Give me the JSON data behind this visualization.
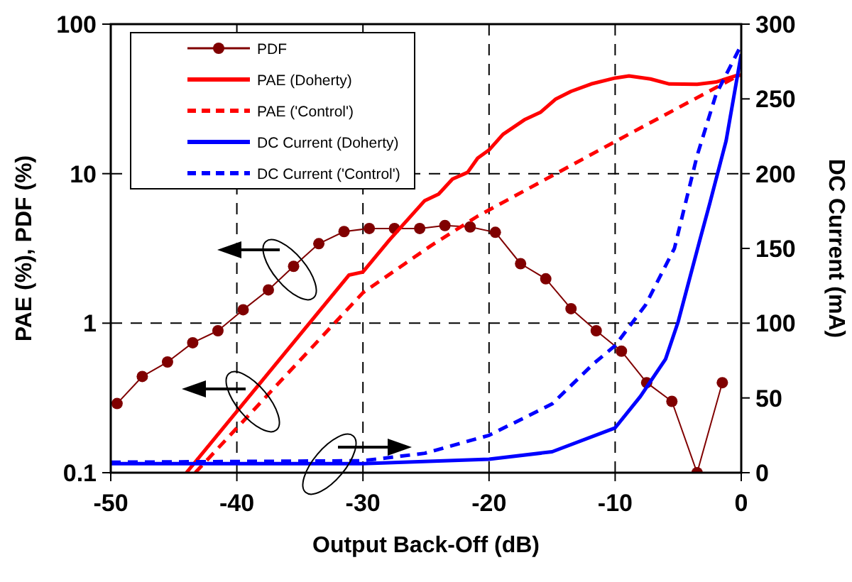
{
  "chart_data": {
    "type": "line",
    "xlabel": "Output Back-Off (dB)",
    "ylabel": "PAE (%), PDF (%)",
    "y2label": "DC Current (mA)",
    "xlim": [
      -50,
      0
    ],
    "xticks": [
      -50,
      -40,
      -30,
      -20,
      -10,
      0
    ],
    "ylim": [
      0.1,
      100
    ],
    "yticks": [
      0.1,
      1,
      10,
      100
    ],
    "log": "y",
    "y2lim": [
      0,
      300
    ],
    "y2ticks": [
      0,
      50,
      100,
      150,
      200,
      250,
      300
    ],
    "grid": true,
    "legend": "top left",
    "series": [
      {
        "name": "PDF",
        "color": "#800000",
        "marker": "circle",
        "line_style": "solid",
        "x": [
          -49.5,
          -47.5,
          -45.5,
          -43.5,
          -41.5,
          -39.5,
          -37.5,
          -35.5,
          -33.5,
          -31.5,
          -29.5,
          -27.5,
          -25.5,
          -23.5,
          -21.5,
          -19.5,
          -17.5,
          -15.5,
          -13.5,
          -11.5,
          -9.5,
          -7.5,
          -5.5,
          -3.5,
          -1.5
        ],
        "values": [
          0.29,
          0.44,
          0.55,
          0.74,
          0.89,
          1.23,
          1.67,
          2.4,
          3.4,
          4.1,
          4.3,
          4.3,
          4.3,
          4.5,
          4.4,
          4.05,
          2.5,
          1.98,
          1.25,
          0.89,
          0.65,
          0.4,
          0.3,
          0.1,
          0.4
        ]
      },
      {
        "name": "PAE (Doherty)",
        "color": "#ff0000",
        "marker": "none",
        "line_style": "solid",
        "x": [
          -44,
          -31.1,
          -30,
          -27.9,
          -25.1,
          -24,
          -22.9,
          -21.7,
          -20.9,
          -20,
          -18.9,
          -17.2,
          -15.9,
          -14.7,
          -13.5,
          -11.9,
          -10,
          -8.9,
          -7.2,
          -5.7,
          -3.5,
          -2,
          -0.5,
          0
        ],
        "values": [
          0.1,
          2.1,
          2.2,
          3.6,
          6.6,
          7.3,
          9.2,
          10.2,
          12.7,
          14.4,
          18.3,
          22.9,
          25.8,
          31.6,
          35.5,
          39.8,
          43.6,
          45,
          43,
          39.8,
          39.6,
          41,
          45,
          45.7
        ]
      },
      {
        "name": "PAE ('Control')",
        "color": "#ff0000",
        "marker": "none",
        "line_style": "dashed",
        "x": [
          -43.3,
          -30,
          -24.6,
          -20.9,
          -10,
          -0.5
        ],
        "values": [
          0.1,
          1.6,
          3.3,
          5.2,
          16.4,
          44
        ]
      },
      {
        "name": "DC Current (Doherty)",
        "color": "#0000ff",
        "marker": "none",
        "line_style": "solid",
        "axis": "y2",
        "x": [
          -50,
          -30,
          -20,
          -15,
          -10,
          -8,
          -6,
          -5,
          -3.3,
          -2.5,
          -1.2,
          0
        ],
        "values": [
          6,
          6,
          9,
          14,
          30,
          51,
          76,
          101,
          155,
          180,
          222,
          280
        ]
      },
      {
        "name": "DC Current ('Control')",
        "color": "#0000ff",
        "marker": "none",
        "line_style": "dashed",
        "axis": "y2",
        "x": [
          -50,
          -30,
          -25.1,
          -20,
          -15,
          -11.7,
          -10,
          -7.6,
          -5.3,
          -3.5,
          -2,
          0
        ],
        "values": [
          7,
          8,
          13,
          25,
          46,
          73,
          85,
          112,
          150,
          212,
          253,
          286
        ]
      }
    ]
  }
}
